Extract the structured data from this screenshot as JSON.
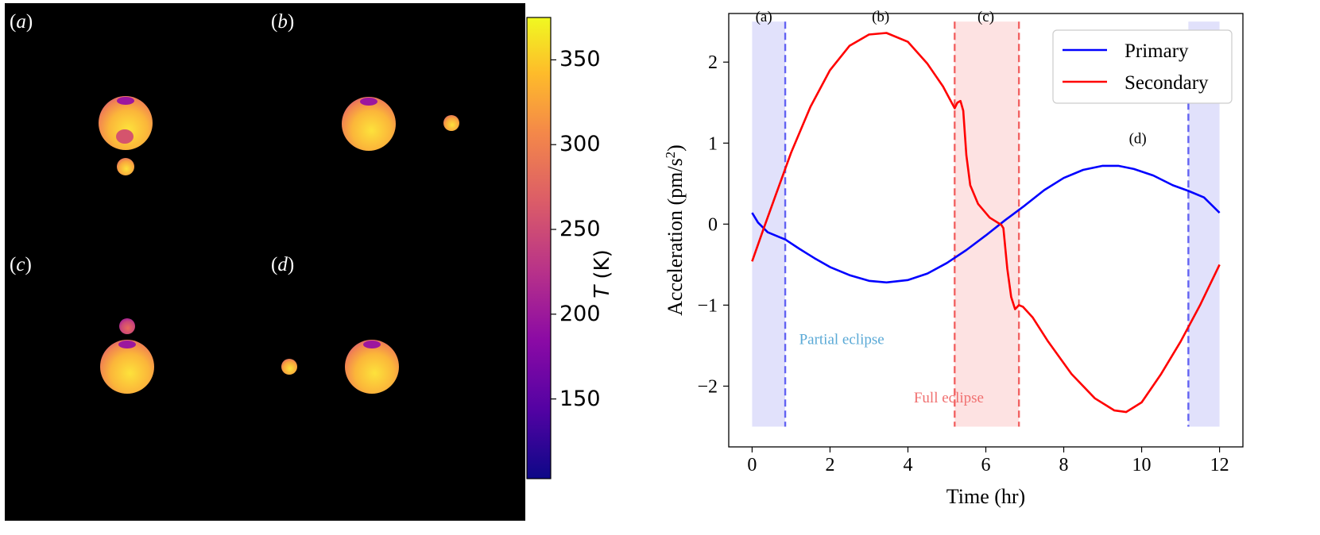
{
  "panels": [
    {
      "id": "a",
      "prefix": "(",
      "letter": "a",
      "suffix": ")"
    },
    {
      "id": "b",
      "prefix": "(",
      "letter": "b",
      "suffix": ")"
    },
    {
      "id": "c",
      "prefix": "(",
      "letter": "c",
      "suffix": ")"
    },
    {
      "id": "d",
      "prefix": "(",
      "letter": "d",
      "suffix": ")"
    }
  ],
  "colorbar": {
    "label_var": "T",
    "label_unit": " (K)",
    "ticks": [
      "150",
      "200",
      "250",
      "300",
      "350"
    ],
    "tick_values": [
      150,
      200,
      250,
      300,
      350
    ],
    "range": [
      103,
      375
    ],
    "colors": [
      "#0d0887",
      "#6a00a8",
      "#b12a90",
      "#e16462",
      "#fca636",
      "#f0f921"
    ]
  },
  "chart_data": {
    "type": "line",
    "xlabel": "Time (hr)",
    "ylabel_main": "Acceleration (pm/s",
    "ylabel_sup": "2",
    "ylabel_end": ")",
    "xlim": [
      -0.6,
      12.6
    ],
    "ylim": [
      -2.75,
      2.6
    ],
    "xticks": [
      0,
      2,
      4,
      6,
      8,
      10,
      12
    ],
    "xtick_labels": [
      "0",
      "2",
      "4",
      "6",
      "8",
      "10",
      "12"
    ],
    "yticks": [
      -2,
      -1,
      0,
      1,
      2
    ],
    "ytick_labels": [
      "−2",
      "−1",
      "0",
      "1",
      "2"
    ],
    "series": [
      {
        "name": "Primary",
        "color": "#0000ff",
        "x": [
          0,
          0.15,
          0.4,
          0.7,
          0.85,
          1.2,
          1.6,
          2,
          2.5,
          3,
          3.45,
          4,
          4.5,
          5,
          5.5,
          6,
          6.5,
          7,
          7.5,
          8,
          8.5,
          9,
          9.4,
          9.8,
          10.3,
          10.8,
          11.2,
          11.6,
          12
        ],
        "y": [
          0.14,
          0.02,
          -0.1,
          -0.16,
          -0.19,
          -0.3,
          -0.42,
          -0.53,
          -0.63,
          -0.7,
          -0.72,
          -0.69,
          -0.61,
          -0.48,
          -0.32,
          -0.14,
          0.05,
          0.23,
          0.42,
          0.57,
          0.67,
          0.72,
          0.72,
          0.68,
          0.6,
          0.48,
          0.41,
          0.33,
          0.14
        ]
      },
      {
        "name": "Secondary",
        "color": "#ff0000",
        "x": [
          0,
          0.3,
          0.6,
          1,
          1.5,
          2,
          2.5,
          3,
          3.45,
          4,
          4.5,
          4.9,
          5.1,
          5.2,
          5.27,
          5.35,
          5.42,
          5.5,
          5.6,
          5.8,
          6.1,
          6.4,
          6.45,
          6.55,
          6.65,
          6.75,
          6.85,
          6.95,
          7.2,
          7.6,
          8.2,
          8.8,
          9.3,
          9.6,
          10,
          10.5,
          11,
          11.5,
          12
        ],
        "y": [
          -0.46,
          -0.05,
          0.35,
          0.88,
          1.45,
          1.9,
          2.2,
          2.34,
          2.36,
          2.25,
          1.98,
          1.7,
          1.52,
          1.43,
          1.5,
          1.52,
          1.4,
          0.85,
          0.48,
          0.25,
          0.08,
          -0.01,
          -0.05,
          -0.55,
          -0.9,
          -1.05,
          -1.0,
          -1.02,
          -1.15,
          -1.45,
          -1.85,
          -2.15,
          -2.3,
          -2.32,
          -2.2,
          -1.85,
          -1.45,
          -1.0,
          -0.5
        ]
      }
    ],
    "bands": [
      {
        "label": "(a)",
        "x0": 0,
        "x1": 0.85,
        "color": "#e1e1fb",
        "line": "#6262f2",
        "line_at": 0.85
      },
      {
        "label": "(c)",
        "x0": 5.2,
        "x1": 6.85,
        "color": "#fde2e2",
        "line": "#f26262",
        "line_at": [
          5.2,
          6.85
        ]
      },
      {
        "label": "",
        "x0": 11.2,
        "x1": 12,
        "color": "#e1e1fb",
        "line": "#6262f2",
        "line_at": 11.2
      }
    ],
    "annotations": [
      {
        "text": "(a)",
        "x": 0.3,
        "y": 2.5
      },
      {
        "text": "(b)",
        "x": 3.3,
        "y": 2.5
      },
      {
        "text": "(c)",
        "x": 6.0,
        "y": 2.5
      },
      {
        "text": "(d)",
        "x": 9.9,
        "y": 1.0
      },
      {
        "text": "Partial eclipse",
        "x": 2.3,
        "y": -1.48,
        "color": "#5aa9d6"
      },
      {
        "text": "Full eclipse",
        "x": 5.05,
        "y": -2.2,
        "color": "#f07070"
      }
    ],
    "legend": {
      "position": "top-right",
      "entries": [
        "Primary",
        "Secondary"
      ]
    }
  }
}
